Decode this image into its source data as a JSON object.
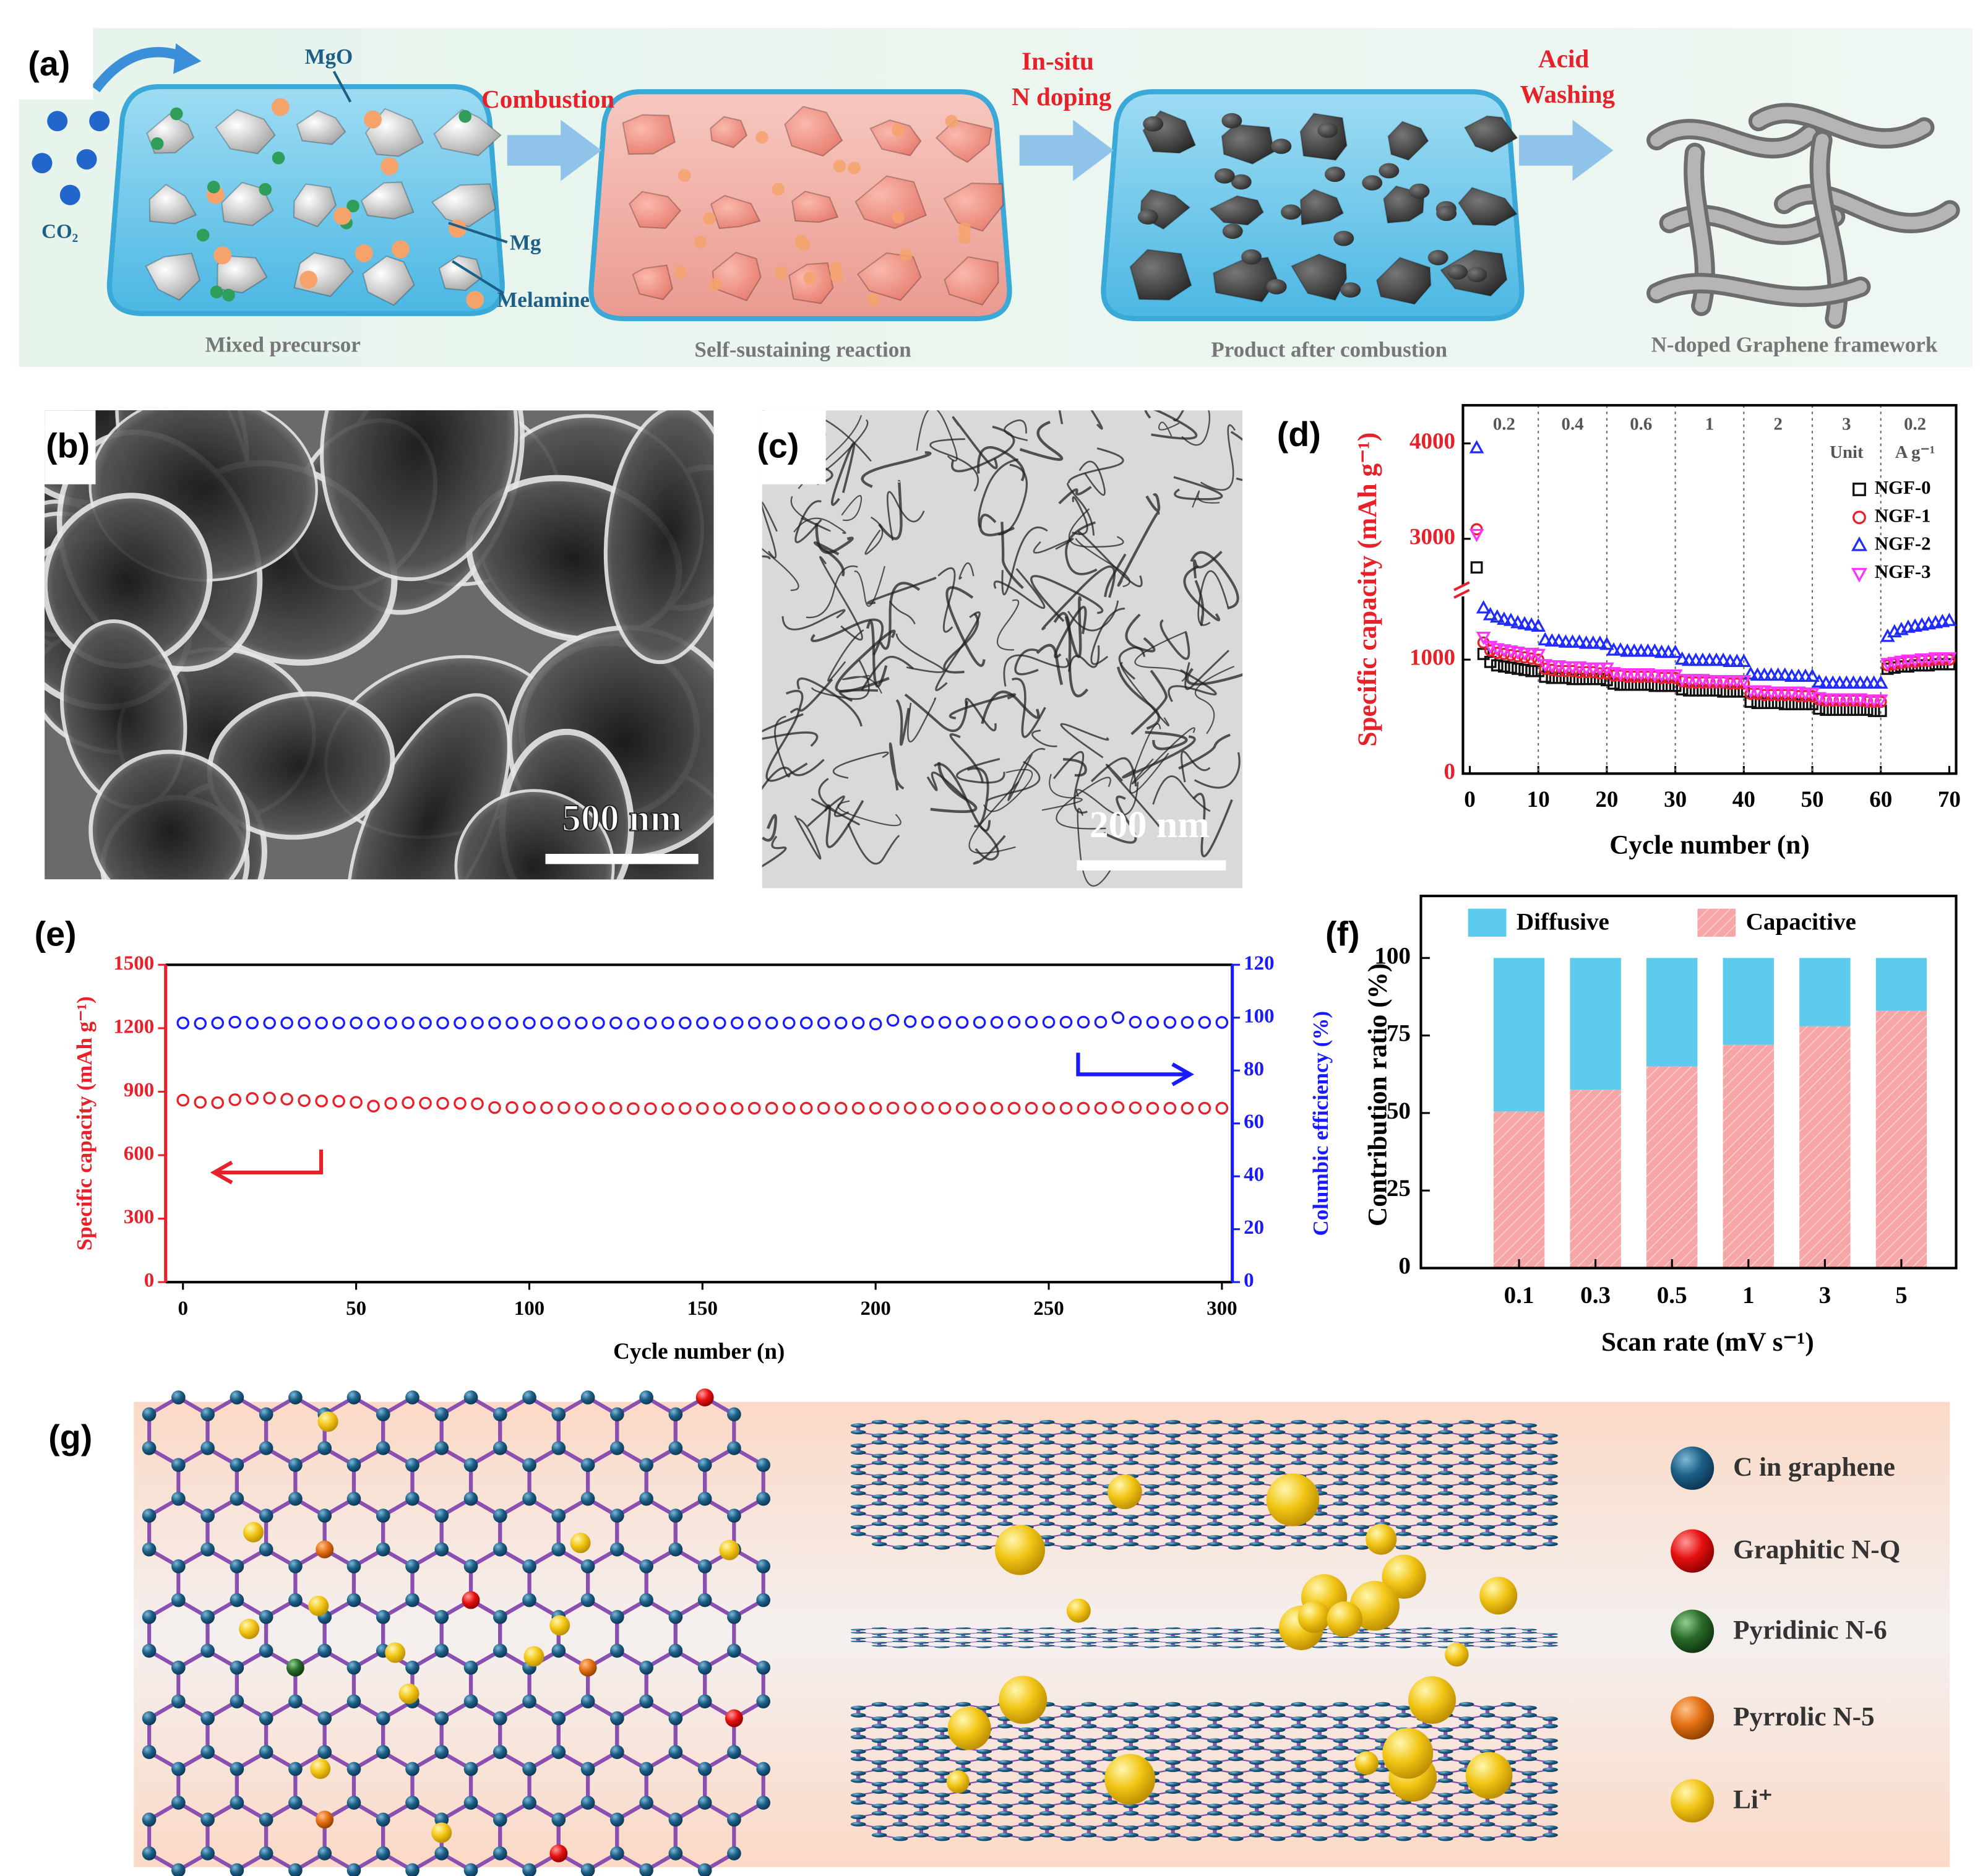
{
  "panel_labels": [
    "(a)",
    "(b)",
    "(c)",
    "(d)",
    "(e)",
    "(f)",
    "(g)"
  ],
  "panel_a": {
    "mgo": "MgO",
    "co2": "CO₂",
    "mg": "Mg",
    "melamine": "Melamine",
    "steps": [
      "Combustion",
      "In-situ",
      "N doping",
      "Acid",
      "Washing"
    ],
    "captions": [
      "Mixed precursor",
      "Self-sustaining reaction",
      "Product after combustion",
      "N-doped Graphene framework"
    ]
  },
  "panel_b": {
    "scale_bar": "500 nm"
  },
  "panel_c": {
    "scale_bar": "200 nm"
  },
  "panel_g": {
    "legend": [
      "C in graphene",
      "Graphitic N-Q",
      "Pyridinic N-6",
      "Pyrrolic N-5",
      "Li⁺"
    ]
  },
  "chart_data": [
    {
      "type": "scatter",
      "ylabel": "Specific capacity (mAh g⁻¹)",
      "xlabel": "Cycle number (n)",
      "rate_labels": [
        "0.2",
        "0.4",
        "0.6",
        "1",
        "2",
        "3",
        "0.2"
      ],
      "rate_unit": [
        "Unit",
        "A g⁻¹"
      ],
      "xlim": [
        -1,
        71
      ],
      "xticks": [
        0,
        10,
        20,
        30,
        40,
        50,
        60,
        70
      ],
      "ylim": [
        0,
        4400
      ],
      "ybreak": [
        1600,
        2450
      ],
      "yticks": [
        0,
        1000,
        3000,
        4000
      ],
      "legend": "right",
      "x": [
        1,
        2,
        3,
        4,
        5,
        6,
        7,
        8,
        9,
        10,
        11,
        12,
        13,
        14,
        15,
        16,
        17,
        18,
        19,
        20,
        21,
        22,
        23,
        24,
        25,
        26,
        27,
        28,
        29,
        30,
        31,
        32,
        33,
        34,
        35,
        36,
        37,
        38,
        39,
        40,
        41,
        42,
        43,
        44,
        45,
        46,
        47,
        48,
        49,
        50,
        51,
        52,
        53,
        54,
        55,
        56,
        57,
        58,
        59,
        60,
        61,
        62,
        63,
        64,
        65,
        66,
        67,
        68,
        69,
        70
      ],
      "series": [
        {
          "name": "NGF-0",
          "color": "#111111",
          "marker": "square",
          "values": [
            2700,
            1050,
            980,
            950,
            940,
            930,
            920,
            910,
            900,
            900,
            850,
            840,
            840,
            840,
            830,
            830,
            830,
            830,
            830,
            820,
            790,
            780,
            780,
            780,
            780,
            780,
            770,
            770,
            770,
            770,
            740,
            730,
            730,
            730,
            730,
            730,
            720,
            720,
            720,
            720,
            630,
            620,
            620,
            620,
            620,
            610,
            610,
            610,
            610,
            610,
            570,
            560,
            560,
            560,
            560,
            560,
            560,
            560,
            550,
            550,
            920,
            930,
            940,
            940,
            950,
            950,
            950,
            960,
            960,
            960
          ]
        },
        {
          "name": "NGF-1",
          "color": "#e8202a",
          "marker": "circle",
          "values": [
            3100,
            1150,
            1080,
            1060,
            1050,
            1040,
            1030,
            1020,
            1010,
            1000,
            920,
            910,
            900,
            900,
            900,
            890,
            890,
            890,
            880,
            880,
            860,
            860,
            850,
            850,
            850,
            850,
            850,
            840,
            840,
            840,
            810,
            800,
            800,
            800,
            800,
            800,
            800,
            790,
            790,
            790,
            700,
            700,
            690,
            690,
            690,
            690,
            690,
            680,
            680,
            680,
            650,
            640,
            640,
            640,
            640,
            640,
            640,
            630,
            630,
            630,
            950,
            960,
            970,
            980,
            980,
            990,
            990,
            1000,
            1000,
            1000
          ]
        },
        {
          "name": "NGF-2",
          "color": "#1f2bff",
          "marker": "triangle-up",
          "values": [
            3950,
            1450,
            1390,
            1370,
            1350,
            1340,
            1320,
            1310,
            1300,
            1290,
            1170,
            1160,
            1160,
            1150,
            1150,
            1150,
            1140,
            1140,
            1140,
            1130,
            1080,
            1080,
            1070,
            1070,
            1070,
            1070,
            1070,
            1060,
            1060,
            1060,
            1000,
            990,
            990,
            990,
            990,
            990,
            990,
            980,
            980,
            980,
            870,
            860,
            860,
            860,
            860,
            860,
            850,
            850,
            850,
            850,
            800,
            790,
            790,
            790,
            790,
            790,
            790,
            790,
            790,
            790,
            1200,
            1240,
            1260,
            1280,
            1290,
            1300,
            1310,
            1320,
            1330,
            1340
          ]
        },
        {
          "name": "NGF-3",
          "color": "#ff33ff",
          "marker": "triangle-down",
          "values": [
            3050,
            1200,
            1120,
            1100,
            1090,
            1080,
            1070,
            1060,
            1060,
            1050,
            960,
            950,
            950,
            940,
            940,
            940,
            930,
            930,
            930,
            930,
            890,
            880,
            880,
            880,
            880,
            880,
            870,
            870,
            870,
            870,
            830,
            830,
            830,
            830,
            820,
            820,
            820,
            820,
            820,
            820,
            730,
            730,
            730,
            720,
            720,
            720,
            720,
            720,
            710,
            710,
            670,
            660,
            660,
            660,
            660,
            660,
            660,
            650,
            650,
            650,
            970,
            980,
            990,
            1000,
            1000,
            1010,
            1010,
            1020,
            1020,
            1020
          ]
        }
      ]
    },
    {
      "type": "line",
      "xlabel": "Cycle number (n)",
      "ylabel": "Specific capacity (mAh g⁻¹)",
      "y2label": "Columbic efficiency (%)",
      "xlim": [
        -5,
        303
      ],
      "xticks": [
        0,
        50,
        100,
        150,
        200,
        250,
        300
      ],
      "ylim": [
        0,
        1500
      ],
      "yticks": [
        0,
        300,
        600,
        900,
        1200,
        1500
      ],
      "y2lim": [
        0,
        120
      ],
      "y2ticks": [
        0,
        20,
        40,
        60,
        80,
        100,
        120
      ],
      "x": [
        0,
        5,
        10,
        15,
        20,
        25,
        30,
        35,
        40,
        45,
        50,
        55,
        60,
        65,
        70,
        75,
        80,
        85,
        90,
        95,
        100,
        105,
        110,
        115,
        120,
        125,
        130,
        135,
        140,
        145,
        150,
        155,
        160,
        165,
        170,
        175,
        180,
        185,
        190,
        195,
        200,
        205,
        210,
        215,
        220,
        225,
        230,
        235,
        240,
        245,
        250,
        255,
        260,
        265,
        270,
        275,
        280,
        285,
        290,
        295,
        300
      ],
      "series": [
        {
          "color": "#e8202a",
          "marker": "circle",
          "values": [
            860,
            850,
            848,
            862,
            868,
            870,
            865,
            858,
            856,
            855,
            850,
            832,
            845,
            848,
            846,
            845,
            845,
            843,
            825,
            825,
            825,
            824,
            824,
            823,
            822,
            822,
            820,
            820,
            820,
            821,
            821,
            821,
            821,
            822,
            822,
            822,
            822,
            822,
            822,
            822,
            822,
            823,
            823,
            823,
            822,
            822,
            822,
            822,
            822,
            822,
            822,
            822,
            822,
            822,
            826,
            824,
            822,
            822,
            822,
            822,
            822
          ]
        },
        {
          "color": "#1a1aff",
          "marker": "circle",
          "axis": "y2",
          "values": [
            98,
            97.8,
            98,
            98.3,
            98,
            98,
            98,
            98,
            98,
            98,
            98,
            98,
            98,
            98,
            98,
            98,
            98,
            98,
            98,
            98,
            98,
            98,
            98,
            98,
            98,
            98,
            97.8,
            98,
            98,
            98,
            98,
            98,
            98,
            98,
            98,
            98,
            98,
            98,
            98,
            98,
            97.6,
            99,
            98.5,
            98.3,
            98.2,
            98.2,
            98.2,
            98.2,
            98.3,
            98.3,
            98.3,
            98.3,
            98.3,
            98.3,
            100,
            98.3,
            98.2,
            98.2,
            98.2,
            98.2,
            98.2
          ]
        }
      ]
    },
    {
      "type": "bar",
      "stacked": true,
      "xlabel": "Scan rate (mV s⁻¹)",
      "ylabel": "Contribution ratio (%)",
      "categories": [
        "0.1",
        "0.3",
        "0.5",
        "1",
        "3",
        "5"
      ],
      "ylim": [
        0,
        120
      ],
      "yticks": [
        0,
        25,
        50,
        75,
        100
      ],
      "legend": "top",
      "series": [
        {
          "name": "Diffusive",
          "color": "#5ccbed",
          "values": [
            49.5,
            42.5,
            35,
            28,
            22,
            17
          ]
        },
        {
          "name": "Capacitive",
          "color": "#f6a6a6",
          "hatch": true,
          "values": [
            50.5,
            57.5,
            65,
            72,
            78,
            83
          ]
        }
      ]
    }
  ]
}
